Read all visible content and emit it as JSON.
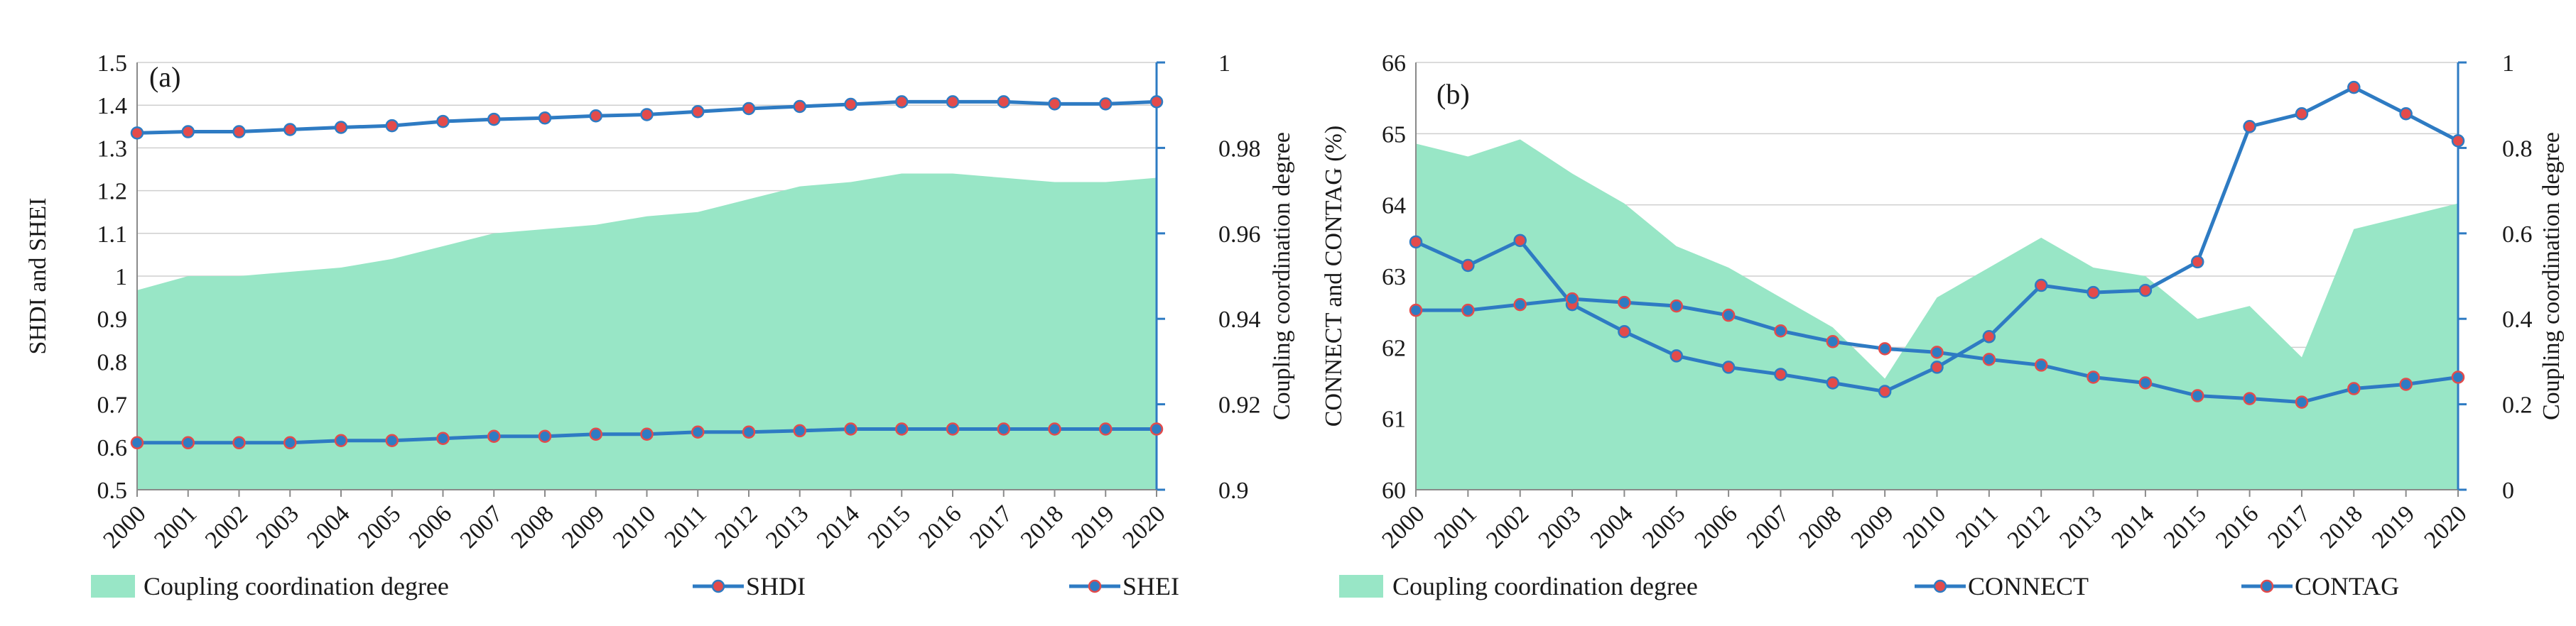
{
  "chart_data": [
    {
      "panel_label": "(a)",
      "type": "line",
      "x": [
        "2000",
        "2001",
        "2002",
        "2003",
        "2004",
        "2005",
        "2006",
        "2007",
        "2008",
        "2009",
        "2010",
        "2011",
        "2012",
        "2013",
        "2014",
        "2015",
        "2016",
        "2017",
        "2018",
        "2019",
        "2020"
      ],
      "ylabel": "SHDI and SHEI",
      "y2label": "Coupling  coordination  degree",
      "ylim": [
        0.5,
        1.5
      ],
      "yticks": [
        "0.5",
        "0.6",
        "0.7",
        "0.8",
        "0.9",
        "1",
        "1.1",
        "1.2",
        "1.3",
        "1.4",
        "1.5"
      ],
      "y2lim": [
        0.9,
        1.0
      ],
      "y2ticks": [
        "0.9",
        "0.92",
        "0.94",
        "0.96",
        "0.98",
        "1"
      ],
      "area": {
        "name": "Coupling coordination degree",
        "axis": "right",
        "values": [
          0.9467,
          0.95,
          0.95,
          0.951,
          0.952,
          0.954,
          0.957,
          0.96,
          0.961,
          0.962,
          0.964,
          0.965,
          0.968,
          0.971,
          0.972,
          0.974,
          0.974,
          0.973,
          0.972,
          0.972,
          0.973
        ]
      },
      "series": [
        {
          "name": "SHDI",
          "axis": "left",
          "values": [
            1.335,
            1.338,
            1.338,
            1.343,
            1.348,
            1.352,
            1.362,
            1.367,
            1.37,
            1.375,
            1.378,
            1.385,
            1.392,
            1.397,
            1.402,
            1.408,
            1.408,
            1.408,
            1.403,
            1.403,
            1.408
          ]
        },
        {
          "name": "SHEI",
          "axis": "left",
          "values": [
            0.61,
            0.61,
            0.61,
            0.61,
            0.615,
            0.615,
            0.62,
            0.625,
            0.625,
            0.63,
            0.63,
            0.635,
            0.635,
            0.638,
            0.642,
            0.642,
            0.642,
            0.642,
            0.642,
            0.642,
            0.642
          ]
        }
      ],
      "legend": [
        "Coupling coordination degree",
        "SHDI",
        "SHEI"
      ],
      "legend_position": "bottom"
    },
    {
      "panel_label": "(b)",
      "type": "line",
      "x": [
        "2000",
        "2001",
        "2002",
        "2003",
        "2004",
        "2005",
        "2006",
        "2007",
        "2008",
        "2009",
        "2010",
        "2011",
        "2012",
        "2013",
        "2014",
        "2015",
        "2016",
        "2017",
        "2018",
        "2019",
        "2020"
      ],
      "ylabel": "CONNECT and CONTAG (%)",
      "y2label": "Coupling  coordination  degree",
      "ylim": [
        60,
        66
      ],
      "yticks": [
        "60",
        "61",
        "62",
        "63",
        "64",
        "65",
        "66"
      ],
      "y2lim": [
        0,
        1
      ],
      "y2ticks": [
        "0",
        "0.2",
        "0.4",
        "0.6",
        "0.8",
        "1"
      ],
      "area": {
        "name": "Coupling coordination degree",
        "axis": "right",
        "values": [
          0.81,
          0.78,
          0.82,
          0.74,
          0.67,
          0.57,
          0.52,
          0.45,
          0.38,
          0.26,
          0.45,
          0.52,
          0.59,
          0.52,
          0.5,
          0.4,
          0.43,
          0.31,
          0.61,
          0.64,
          0.67
        ]
      },
      "series": [
        {
          "name": "CONNECT",
          "axis": "left",
          "values": [
            63.48,
            63.15,
            63.5,
            62.6,
            62.22,
            61.88,
            61.72,
            61.62,
            61.5,
            61.38,
            61.72,
            62.15,
            62.87,
            62.77,
            62.8,
            63.2,
            65.1,
            65.28,
            65.65,
            65.28,
            64.9
          ]
        },
        {
          "name": "CONTAG",
          "axis": "left",
          "values": [
            62.52,
            62.52,
            62.6,
            62.68,
            62.63,
            62.58,
            62.45,
            62.23,
            62.08,
            61.98,
            61.93,
            61.83,
            61.75,
            61.58,
            61.5,
            61.32,
            61.28,
            61.23,
            61.42,
            61.48,
            61.58
          ]
        }
      ],
      "legend": [
        "Coupling coordination degree",
        "CONNECT",
        "CONTAG"
      ],
      "legend_position": "bottom"
    }
  ],
  "colors": {
    "area": "#98e6c6",
    "line": "#2e7bc3",
    "marker": "#e34b4b",
    "axis": "#2e7bc3",
    "grid": "#cfcfcf"
  }
}
